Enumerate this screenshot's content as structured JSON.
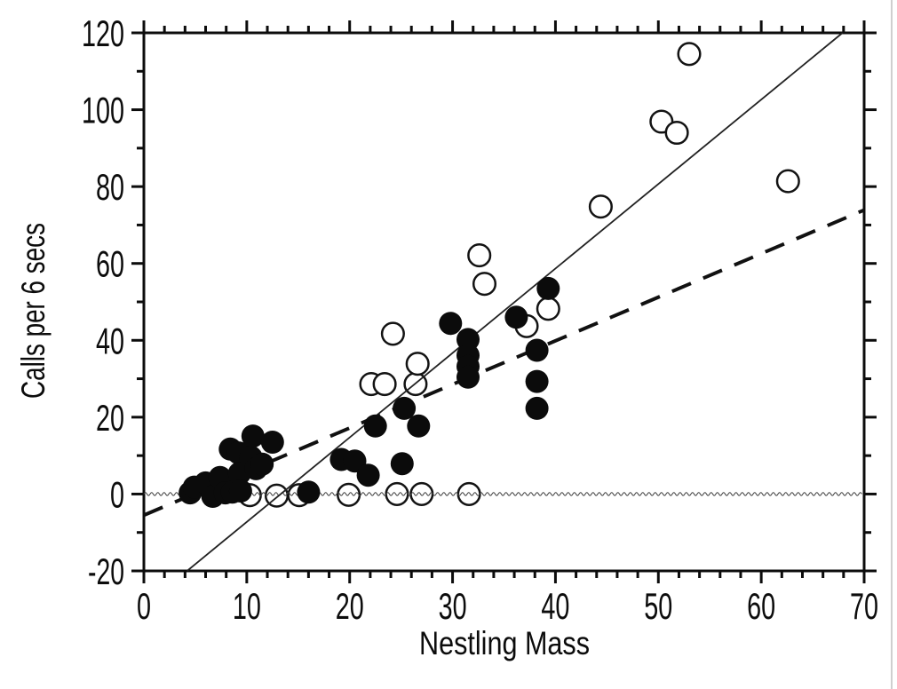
{
  "chart_data": {
    "type": "scatter",
    "title": "",
    "xlabel": "Nestling Mass",
    "ylabel": "Calls per 6 secs",
    "xlim": [
      0,
      70
    ],
    "ylim": [
      -20,
      120
    ],
    "grid": false,
    "legend": "none",
    "x_major_ticks": [
      0,
      10,
      20,
      30,
      40,
      50,
      60,
      70
    ],
    "x_minor_step": 2,
    "y_major_ticks": [
      -20,
      0,
      20,
      40,
      60,
      80,
      100,
      120
    ],
    "y_minor_step": 10,
    "colors": {
      "background": "#ffffff",
      "axis": "#0c0c0c",
      "filled_marker": "#0b0b0b",
      "open_marker_stroke": "#131313"
    },
    "series": [
      {
        "name": "filled_circles",
        "marker": "filled",
        "points": [
          [
            4.5,
            0.3
          ],
          [
            4.9,
            1.8
          ],
          [
            6.0,
            2.9
          ],
          [
            6.7,
            -0.6
          ],
          [
            7.4,
            4.3
          ],
          [
            7.9,
            0.3
          ],
          [
            8.4,
            11.7
          ],
          [
            8.6,
            0.5
          ],
          [
            9.2,
            10.7
          ],
          [
            9.3,
            5.4
          ],
          [
            9.4,
            0.8
          ],
          [
            10.4,
            9.6
          ],
          [
            10.6,
            15.1
          ],
          [
            10.9,
            6.6
          ],
          [
            11.5,
            7.8
          ],
          [
            12.5,
            13.5
          ],
          [
            16.0,
            0.5
          ],
          [
            19.2,
            9.0
          ],
          [
            20.5,
            8.6
          ],
          [
            21.8,
            4.9
          ],
          [
            22.5,
            17.7
          ],
          [
            25.1,
            7.9
          ],
          [
            25.3,
            22.3
          ],
          [
            26.7,
            17.7
          ],
          [
            29.8,
            44.4
          ],
          [
            31.5,
            40.2
          ],
          [
            31.5,
            36.1
          ],
          [
            31.5,
            33.2
          ],
          [
            31.5,
            30.4
          ],
          [
            36.2,
            46.0
          ],
          [
            38.2,
            37.4
          ],
          [
            38.2,
            29.3
          ],
          [
            38.2,
            22.3
          ],
          [
            39.3,
            53.5
          ]
        ]
      },
      {
        "name": "open_circles",
        "marker": "open",
        "points": [
          [
            10.3,
            -0.3
          ],
          [
            12.9,
            -0.4
          ],
          [
            15.1,
            -0.3
          ],
          [
            19.9,
            -0.2
          ],
          [
            24.6,
            0.0
          ],
          [
            27.0,
            0.0
          ],
          [
            31.6,
            0.0
          ],
          [
            22.1,
            28.6
          ],
          [
            23.4,
            28.6
          ],
          [
            26.4,
            28.6
          ],
          [
            26.6,
            33.9
          ],
          [
            24.2,
            41.7
          ],
          [
            32.6,
            62.1
          ],
          [
            33.1,
            54.7
          ],
          [
            37.2,
            43.7
          ],
          [
            39.3,
            48.2
          ],
          [
            44.4,
            74.8
          ],
          [
            50.3,
            96.9
          ],
          [
            51.8,
            94.0
          ],
          [
            53.0,
            114.5
          ],
          [
            62.6,
            81.4
          ]
        ]
      }
    ],
    "lines": [
      {
        "name": "solid-regression-line",
        "style": "solid",
        "x1": 4.2,
        "y1": -20,
        "x2": 67.9,
        "y2": 120
      },
      {
        "name": "dashed-regression-line",
        "style": "dashed",
        "x1": 0,
        "y1": -5.5,
        "x2": 70,
        "y2": 73.9
      },
      {
        "name": "zero-reference-line",
        "style": "wavy",
        "y": 0
      }
    ]
  }
}
